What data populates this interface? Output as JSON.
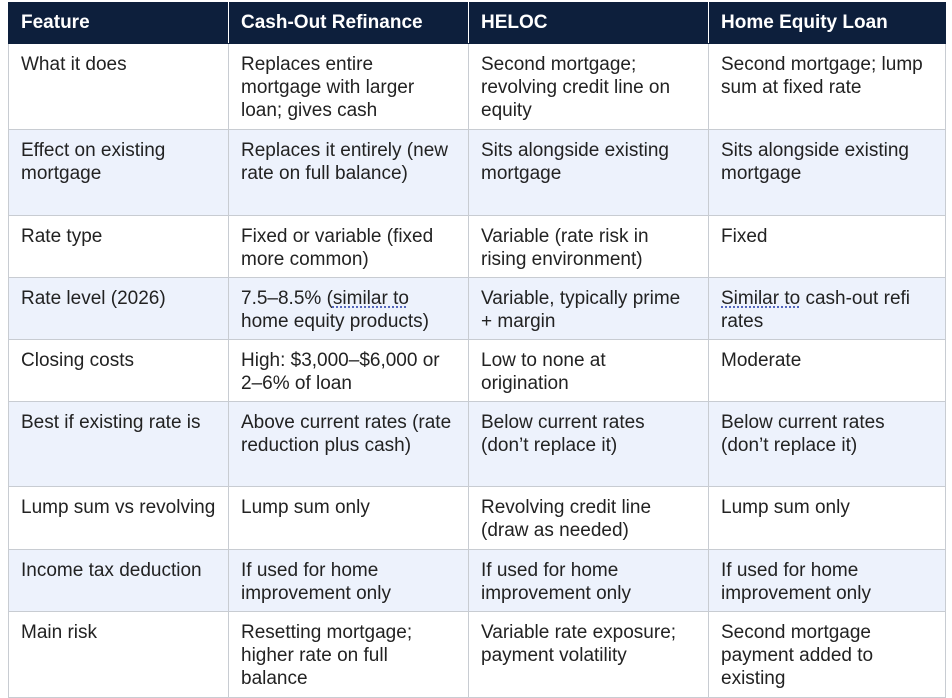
{
  "table": {
    "headers": [
      "Feature",
      "Cash-Out Refinance",
      "HELOC",
      "Home Equity Loan"
    ],
    "rows": [
      {
        "feature": "What it does",
        "cash_out": "Replaces entire mortgage with larger loan; gives cash",
        "heloc": "Second mortgage; revolving credit line on equity",
        "home_equity": "Second mortgage; lump sum at fixed rate"
      },
      {
        "feature": "Effect on existing mortgage",
        "cash_out": "Replaces it entirely (new rate on full balance)",
        "heloc": "Sits alongside existing mortgage",
        "home_equity": "Sits alongside existing mortgage"
      },
      {
        "feature": "Rate type",
        "cash_out": "Fixed or variable (fixed more common)",
        "heloc": "Variable (rate risk in rising environment)",
        "home_equity": "Fixed"
      },
      {
        "feature": "Rate level (2026)",
        "cash_out_pre": "7.5–8.5% (",
        "cash_out_link": "similar to",
        "cash_out_post": " home equity products)",
        "heloc": "Variable, typically prime + margin",
        "home_equity_link": "Similar to",
        "home_equity_post": " cash-out refi rates"
      },
      {
        "feature": "Closing costs",
        "cash_out": "High: $3,000–$6,000 or 2–6% of loan",
        "heloc": "Low to none at origination",
        "home_equity": "Moderate"
      },
      {
        "feature": "Best if existing rate is",
        "cash_out": "Above current rates (rate reduction plus cash)",
        "heloc": "Below current rates (don’t replace it)",
        "home_equity": "Below current rates (don’t replace it)"
      },
      {
        "feature": "Lump sum vs revolving",
        "cash_out": "Lump sum only",
        "heloc": "Revolving credit line (draw as needed)",
        "home_equity": "Lump sum only"
      },
      {
        "feature": "Income tax deduction",
        "cash_out": "If used for home improvement only",
        "heloc": "If used for home improvement only",
        "home_equity": "If used for home improvement only"
      },
      {
        "feature": "Main risk",
        "cash_out": "Resetting mortgage; higher rate on full balance",
        "heloc": "Variable rate exposure; payment volatility",
        "home_equity": "Second mortgage payment added to existing"
      }
    ]
  },
  "colors": {
    "header_bg": "#0d1f3c",
    "header_text": "#ffffff",
    "alt_row_bg": "#edf2fc",
    "border": "#c8ccd2"
  }
}
